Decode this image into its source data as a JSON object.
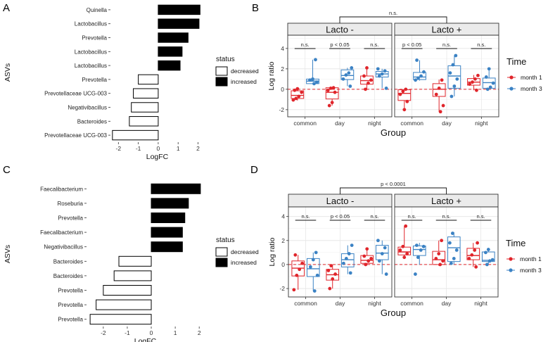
{
  "chart_data": [
    {
      "panel": "A",
      "type": "bar",
      "orientation": "horizontal",
      "categories": [
        "Quinella",
        "Lactobacillus",
        "Prevotella",
        "Lactobacillus",
        "Lactobacillus",
        "Prevotella",
        "Prevotellaceae UCG-003",
        "Negativibacillus",
        "Bacteroides",
        "Prevotellaceae UCG-003"
      ],
      "values": [
        2.1,
        2.05,
        1.5,
        1.2,
        1.1,
        -1.0,
        -1.25,
        -1.35,
        -1.45,
        -2.3
      ],
      "status": [
        "increased",
        "increased",
        "increased",
        "increased",
        "increased",
        "decreased",
        "decreased",
        "decreased",
        "decreased",
        "decreased"
      ],
      "xlabel": "LogFC",
      "ylabel": "ASVs",
      "xlim": [
        -2.4,
        2.3
      ],
      "xticks": [
        -2,
        -1,
        0,
        1,
        2
      ],
      "legend": {
        "title": "status",
        "entries": [
          "decreased",
          "increased"
        ]
      }
    },
    {
      "panel": "B",
      "type": "box",
      "facets": [
        "Lacto -",
        "Lacto +"
      ],
      "groups": [
        "common",
        "day",
        "night"
      ],
      "series": [
        {
          "name": "month 1",
          "color": "#e0252b"
        },
        {
          "name": "month 3",
          "color": "#3b82c4"
        }
      ],
      "ylabel": "Log ratio",
      "xlabel": "Group",
      "ylim": [
        -2.7,
        5.3
      ],
      "yticks": [
        -2,
        0,
        2,
        4
      ],
      "reference_line": 0,
      "boxes": [
        {
          "facet": 0,
          "group": 0,
          "series": 0,
          "q1": -0.9,
          "median": -0.6,
          "q3": -0.15,
          "min": -1.1,
          "max": 0.0,
          "points": [
            -1.05,
            -0.9,
            -0.7,
            -0.3,
            -0.1,
            0.05
          ]
        },
        {
          "facet": 0,
          "group": 0,
          "series": 1,
          "q1": 0.55,
          "median": 0.8,
          "q3": 1.0,
          "min": 0.5,
          "max": 2.9,
          "points": [
            0.55,
            0.7,
            0.9,
            1.0,
            2.9
          ]
        },
        {
          "facet": 0,
          "group": 1,
          "series": 0,
          "q1": -0.95,
          "median": -0.3,
          "q3": 0.15,
          "min": -1.6,
          "max": 0.15,
          "points": [
            -1.6,
            -1.3,
            -0.3,
            -0.1,
            0.1,
            0.15
          ]
        },
        {
          "facet": 0,
          "group": 1,
          "series": 1,
          "q1": 0.95,
          "median": 1.35,
          "q3": 1.9,
          "min": 0.3,
          "max": 2.1,
          "points": [
            0.3,
            1.0,
            1.4,
            1.6,
            2.1
          ]
        },
        {
          "facet": 0,
          "group": 2,
          "series": 0,
          "q1": 0.5,
          "median": 0.85,
          "q3": 1.3,
          "min": 0.0,
          "max": 2.1,
          "points": [
            0.0,
            0.6,
            0.9,
            1.3,
            2.1
          ]
        },
        {
          "facet": 0,
          "group": 2,
          "series": 1,
          "q1": 1.2,
          "median": 1.5,
          "q3": 1.75,
          "min": 0.1,
          "max": 2.0,
          "points": [
            0.1,
            1.3,
            1.5,
            1.8,
            2.0
          ]
        },
        {
          "facet": 1,
          "group": 0,
          "series": 0,
          "q1": -1.1,
          "median": -0.4,
          "q3": -0.05,
          "min": -2.0,
          "max": 0.0,
          "points": [
            -2.0,
            -1.2,
            -0.5,
            -0.2,
            0.0
          ]
        },
        {
          "facet": 1,
          "group": 0,
          "series": 1,
          "q1": 0.95,
          "median": 1.2,
          "q3": 1.65,
          "min": 0.85,
          "max": 2.85,
          "points": [
            0.9,
            1.1,
            1.3,
            1.7,
            2.85
          ]
        },
        {
          "facet": 1,
          "group": 1,
          "series": 0,
          "q1": -0.7,
          "median": 0.0,
          "q3": 0.55,
          "min": -2.2,
          "max": 0.95,
          "points": [
            -2.2,
            -1.6,
            -0.5,
            0.1,
            0.9
          ]
        },
        {
          "facet": 1,
          "group": 1,
          "series": 1,
          "q1": 0.1,
          "median": 1.3,
          "q3": 2.3,
          "min": -0.7,
          "max": 3.3,
          "points": [
            -0.7,
            0.3,
            1.0,
            1.6,
            2.4,
            3.3
          ]
        },
        {
          "facet": 1,
          "group": 2,
          "series": 0,
          "q1": 0.4,
          "median": 0.7,
          "q3": 1.05,
          "min": -0.1,
          "max": 1.4,
          "points": [
            -0.1,
            0.5,
            0.7,
            1.0,
            1.35
          ]
        },
        {
          "facet": 1,
          "group": 2,
          "series": 1,
          "q1": 0.1,
          "median": 0.65,
          "q3": 1.1,
          "min": 0.0,
          "max": 2.0,
          "points": [
            0.0,
            0.2,
            0.6,
            1.2,
            2.0
          ]
        }
      ],
      "within_comparisons": [
        {
          "facet": 0,
          "group": 0,
          "label": "n.s."
        },
        {
          "facet": 0,
          "group": 1,
          "label": "p < 0.05"
        },
        {
          "facet": 0,
          "group": 2,
          "label": "n.s."
        },
        {
          "facet": 1,
          "group": 0,
          "label": "p < 0.05"
        },
        {
          "facet": 1,
          "group": 1,
          "label": "n.s."
        },
        {
          "facet": 1,
          "group": 2,
          "label": "n.s."
        }
      ],
      "between_facets_label": "n.s.",
      "legend": {
        "title": "Time",
        "entries": [
          "month 1",
          "month 3"
        ]
      }
    },
    {
      "panel": "C",
      "type": "bar",
      "orientation": "horizontal",
      "categories": [
        "Faecalibacterium",
        "Roseburia",
        "Prevotella",
        "Faecalibacterium",
        "Negativibacillus",
        "Bacteroides",
        "Bacteroides",
        "Prevotella",
        "Prevotella",
        "Prevotella"
      ],
      "values": [
        2.05,
        1.55,
        1.4,
        1.3,
        1.3,
        -1.35,
        -1.55,
        -2.0,
        -2.3,
        -2.55
      ],
      "status": [
        "increased",
        "increased",
        "increased",
        "increased",
        "increased",
        "decreased",
        "decreased",
        "decreased",
        "decreased",
        "decreased"
      ],
      "xlabel": "LogFC",
      "ylabel": "ASVs",
      "xlim": [
        -2.7,
        2.2
      ],
      "xticks": [
        -2,
        -1,
        0,
        1,
        2
      ],
      "legend": {
        "title": "status",
        "entries": [
          "decreased",
          "increased"
        ]
      }
    },
    {
      "panel": "D",
      "type": "box",
      "facets": [
        "Lacto -",
        "Lacto +"
      ],
      "groups": [
        "common",
        "day",
        "night"
      ],
      "series": [
        {
          "name": "month 1",
          "color": "#e0252b"
        },
        {
          "name": "month 3",
          "color": "#3b82c4"
        }
      ],
      "ylabel": "Log ratio",
      "xlabel": "Group",
      "ylim": [
        -2.7,
        4.8
      ],
      "yticks": [
        -2,
        0,
        2,
        4
      ],
      "reference_line": 0,
      "boxes": [
        {
          "facet": 0,
          "group": 0,
          "series": 0,
          "q1": -0.95,
          "median": -0.3,
          "q3": 0.3,
          "min": -2.1,
          "max": 0.8,
          "points": [
            -2.1,
            -0.9,
            -0.4,
            0.1,
            0.8
          ]
        },
        {
          "facet": 0,
          "group": 0,
          "series": 1,
          "q1": -1.0,
          "median": -0.35,
          "q3": 0.5,
          "min": -2.2,
          "max": 1.0,
          "points": [
            -2.2,
            -0.9,
            -0.2,
            0.4,
            1.0
          ]
        },
        {
          "facet": 0,
          "group": 1,
          "series": 0,
          "q1": -1.3,
          "median": -0.85,
          "q3": -0.4,
          "min": -2.0,
          "max": 0.0,
          "points": [
            -2.0,
            -1.2,
            -0.8,
            -0.5,
            -0.1
          ]
        },
        {
          "facet": 0,
          "group": 1,
          "series": 1,
          "q1": -0.2,
          "median": 0.4,
          "q3": 0.9,
          "min": -0.8,
          "max": 1.6,
          "points": [
            -0.7,
            0.1,
            0.5,
            0.9,
            1.6
          ]
        },
        {
          "facet": 0,
          "group": 2,
          "series": 0,
          "q1": 0.1,
          "median": 0.35,
          "q3": 0.75,
          "min": -0.05,
          "max": 1.3,
          "points": [
            0.0,
            0.3,
            0.5,
            0.7,
            1.3
          ]
        },
        {
          "facet": 0,
          "group": 2,
          "series": 1,
          "q1": 0.4,
          "median": 0.95,
          "q3": 1.6,
          "min": -0.8,
          "max": 2.0,
          "points": [
            -0.8,
            0.3,
            0.9,
            1.4,
            2.0
          ]
        },
        {
          "facet": 1,
          "group": 0,
          "series": 0,
          "q1": 0.8,
          "median": 1.05,
          "q3": 1.45,
          "min": 0.5,
          "max": 3.2,
          "points": [
            0.6,
            0.9,
            1.2,
            1.5,
            3.2
          ]
        },
        {
          "facet": 1,
          "group": 0,
          "series": 1,
          "q1": 0.75,
          "median": 1.25,
          "q3": 1.55,
          "min": 0.0,
          "max": 1.8,
          "points": [
            -0.8,
            0.6,
            1.2,
            1.5,
            1.6
          ]
        },
        {
          "facet": 1,
          "group": 1,
          "series": 0,
          "q1": 0.0,
          "median": 0.4,
          "q3": 1.1,
          "min": -0.1,
          "max": 2.0,
          "points": [
            0.0,
            0.3,
            0.5,
            0.9,
            2.0
          ]
        },
        {
          "facet": 1,
          "group": 1,
          "series": 1,
          "q1": 0.25,
          "median": 1.4,
          "q3": 2.3,
          "min": 0.0,
          "max": 2.7,
          "points": [
            0.1,
            0.5,
            1.2,
            1.8,
            2.6
          ]
        },
        {
          "facet": 1,
          "group": 2,
          "series": 0,
          "q1": 0.4,
          "median": 0.75,
          "q3": 1.35,
          "min": -0.2,
          "max": 1.8,
          "points": [
            -0.2,
            0.5,
            0.8,
            1.2,
            1.8
          ]
        },
        {
          "facet": 1,
          "group": 2,
          "series": 1,
          "q1": 0.25,
          "median": 0.35,
          "q3": 1.05,
          "min": 0.0,
          "max": 1.3,
          "points": [
            0.0,
            0.3,
            0.4,
            1.0,
            1.25
          ]
        }
      ],
      "within_comparisons": [
        {
          "facet": 0,
          "group": 0,
          "label": "n.s."
        },
        {
          "facet": 0,
          "group": 1,
          "label": "p < 0.05"
        },
        {
          "facet": 0,
          "group": 2,
          "label": "n.s."
        },
        {
          "facet": 1,
          "group": 0,
          "label": "n.s."
        },
        {
          "facet": 1,
          "group": 1,
          "label": "n.s."
        },
        {
          "facet": 1,
          "group": 2,
          "label": "n.s."
        }
      ],
      "between_facets_label": "p < 0.0001",
      "legend": {
        "title": "Time",
        "entries": [
          "month 1",
          "month 3"
        ]
      }
    }
  ]
}
